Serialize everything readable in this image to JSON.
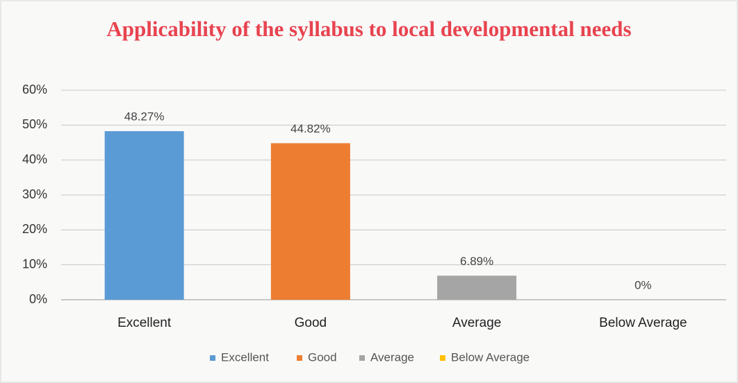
{
  "chart_data": {
    "type": "bar",
    "title": "Applicability of the syllabus to local developmental needs",
    "categories": [
      "Excellent",
      "Good",
      "Average",
      "Below Average"
    ],
    "values": [
      48.27,
      44.82,
      6.89,
      0
    ],
    "value_labels": [
      "48.27%",
      "44.82%",
      "6.89%",
      "0%"
    ],
    "colors": [
      "#5b9bd5",
      "#ed7d31",
      "#a5a5a5",
      "#ffc000"
    ],
    "ylim": [
      0,
      60
    ],
    "yticks": [
      {
        "value": 0,
        "label": "0%"
      },
      {
        "value": 10,
        "label": "10%"
      },
      {
        "value": 20,
        "label": "20%"
      },
      {
        "value": 30,
        "label": "30%"
      },
      {
        "value": 40,
        "label": "40%"
      },
      {
        "value": 50,
        "label": "50%"
      },
      {
        "value": 60,
        "label": "60%"
      }
    ],
    "grid": true,
    "legend": "bottom"
  }
}
